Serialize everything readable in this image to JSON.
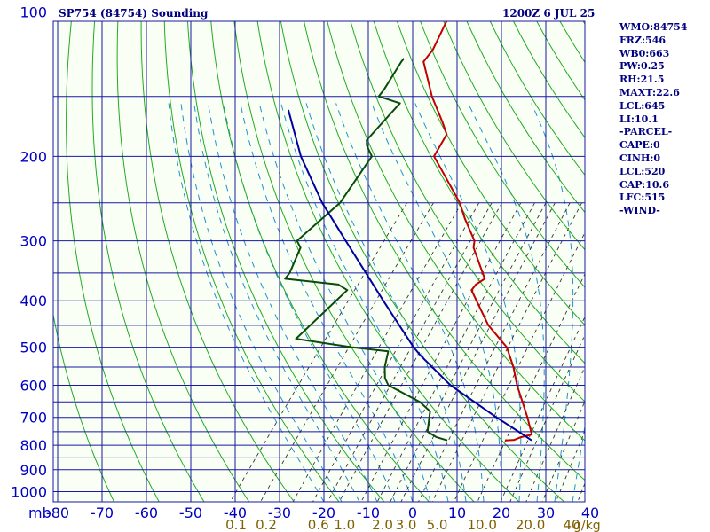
{
  "header": {
    "station_title": "SP754 (84754) Sounding",
    "time_title": "1200Z  6 JUL 25"
  },
  "indices": [
    "WMO:84754",
    "FRZ:546",
    "WB0:663",
    "PW:0.25",
    "RH:21.5",
    "MAXT:22.6",
    "LCL:645",
    "LI:10.1",
    "-PARCEL-",
    "CAPE:0",
    "CINH:0",
    "LCL:520",
    "CAP:10.6",
    "LFC:515",
    "-WIND-"
  ],
  "colors": {
    "background": "#fafff5",
    "isobars": "#1818a0",
    "isotherms": "#1818a0",
    "dry_adiabats": "#22aa22",
    "moist_adiabats": "#2090d0",
    "mixing_ratio": "#333333",
    "temperature": "#c00000",
    "dewpoint": "#0a4a0a",
    "parcel": "#0000a0",
    "temp_axis_labels": "#0000c0",
    "mixing_axis_labels": "#806000"
  },
  "chart_data": {
    "type": "line",
    "y_axis": {
      "unit_label": "mb",
      "pressure_ticks": [
        100,
        200,
        300,
        400,
        500,
        600,
        700,
        800,
        900,
        1000
      ],
      "tick_labels": [
        "100",
        "200",
        "300",
        "400",
        "500",
        "600",
        "700",
        "800",
        "900",
        "1000"
      ],
      "grid_isobars": [
        100,
        150,
        200,
        250,
        300,
        350,
        400,
        450,
        500,
        550,
        600,
        650,
        700,
        750,
        800,
        850,
        900,
        950,
        1000,
        1050
      ],
      "scale": "log",
      "range": [
        100,
        1050
      ]
    },
    "x_axis": {
      "temperature_ticks": [
        -80,
        -70,
        -60,
        -50,
        -40,
        -30,
        -20,
        -10,
        0,
        10,
        20,
        30,
        40
      ],
      "tick_labels": [
        "-80",
        "-70",
        "-60",
        "-50",
        "-40",
        "-30",
        "-20",
        "-10",
        "0",
        "10",
        "20",
        "30",
        "40"
      ],
      "range": [
        -80,
        40
      ]
    },
    "mixing_ratio_axis": {
      "values": [
        0.1,
        0.2,
        0.6,
        1.0,
        2.0,
        3.0,
        5.0,
        10.0,
        20.0,
        40.0
      ],
      "labels": [
        "0.1",
        "0.2",
        "0.6",
        "1.0",
        "2.0",
        "3.0",
        "5.0",
        "10.0",
        "20.0",
        "40"
      ],
      "unit": "g/kg"
    },
    "series": [
      {
        "key": "temperature",
        "points": [
          {
            "p": 100,
            "t": -76
          },
          {
            "p": 104,
            "t": -77
          },
          {
            "p": 120,
            "t": -75
          },
          {
            "p": 127,
            "t": -75
          },
          {
            "p": 150,
            "t": -67
          },
          {
            "p": 170,
            "t": -60
          },
          {
            "p": 180,
            "t": -57
          },
          {
            "p": 200,
            "t": -56
          },
          {
            "p": 220,
            "t": -50
          },
          {
            "p": 250,
            "t": -42
          },
          {
            "p": 270,
            "t": -38
          },
          {
            "p": 300,
            "t": -32
          },
          {
            "p": 310,
            "t": -31
          },
          {
            "p": 360,
            "t": -23
          },
          {
            "p": 370,
            "t": -24
          },
          {
            "p": 380,
            "t": -24
          },
          {
            "p": 400,
            "t": -21
          },
          {
            "p": 450,
            "t": -14
          },
          {
            "p": 500,
            "t": -6
          },
          {
            "p": 550,
            "t": -1
          },
          {
            "p": 600,
            "t": 3
          },
          {
            "p": 700,
            "t": 11
          },
          {
            "p": 760,
            "t": 15
          },
          {
            "p": 770,
            "t": 13
          },
          {
            "p": 780,
            "t": 12
          },
          {
            "p": 782,
            "t": 10
          }
        ]
      },
      {
        "key": "dewpoint",
        "points": [
          {
            "p": 125,
            "t": -80
          },
          {
            "p": 127,
            "t": -80
          },
          {
            "p": 145,
            "t": -79
          },
          {
            "p": 150,
            "t": -79
          },
          {
            "p": 155,
            "t": -73
          },
          {
            "p": 185,
            "t": -74
          },
          {
            "p": 190,
            "t": -73
          },
          {
            "p": 200,
            "t": -70
          },
          {
            "p": 250,
            "t": -69
          },
          {
            "p": 300,
            "t": -72
          },
          {
            "p": 310,
            "t": -70
          },
          {
            "p": 350,
            "t": -68
          },
          {
            "p": 360,
            "t": -68
          },
          {
            "p": 370,
            "t": -55
          },
          {
            "p": 380,
            "t": -52
          },
          {
            "p": 480,
            "t": -55
          },
          {
            "p": 500,
            "t": -41
          },
          {
            "p": 510,
            "t": -32
          },
          {
            "p": 550,
            "t": -30
          },
          {
            "p": 580,
            "t": -28
          },
          {
            "p": 600,
            "t": -26
          },
          {
            "p": 650,
            "t": -16
          },
          {
            "p": 680,
            "t": -12
          },
          {
            "p": 750,
            "t": -9
          },
          {
            "p": 770,
            "t": -6
          },
          {
            "p": 782,
            "t": -3
          }
        ]
      },
      {
        "key": "parcel",
        "points": [
          {
            "p": 160,
            "t": -97
          },
          {
            "p": 200,
            "t": -86
          },
          {
            "p": 250,
            "t": -73
          },
          {
            "p": 300,
            "t": -61
          },
          {
            "p": 400,
            "t": -42
          },
          {
            "p": 500,
            "t": -27
          },
          {
            "p": 520,
            "t": -24
          },
          {
            "p": 600,
            "t": -12
          },
          {
            "p": 700,
            "t": 4
          },
          {
            "p": 760,
            "t": 13
          },
          {
            "p": 782,
            "t": 16
          }
        ]
      }
    ],
    "grid": true
  }
}
